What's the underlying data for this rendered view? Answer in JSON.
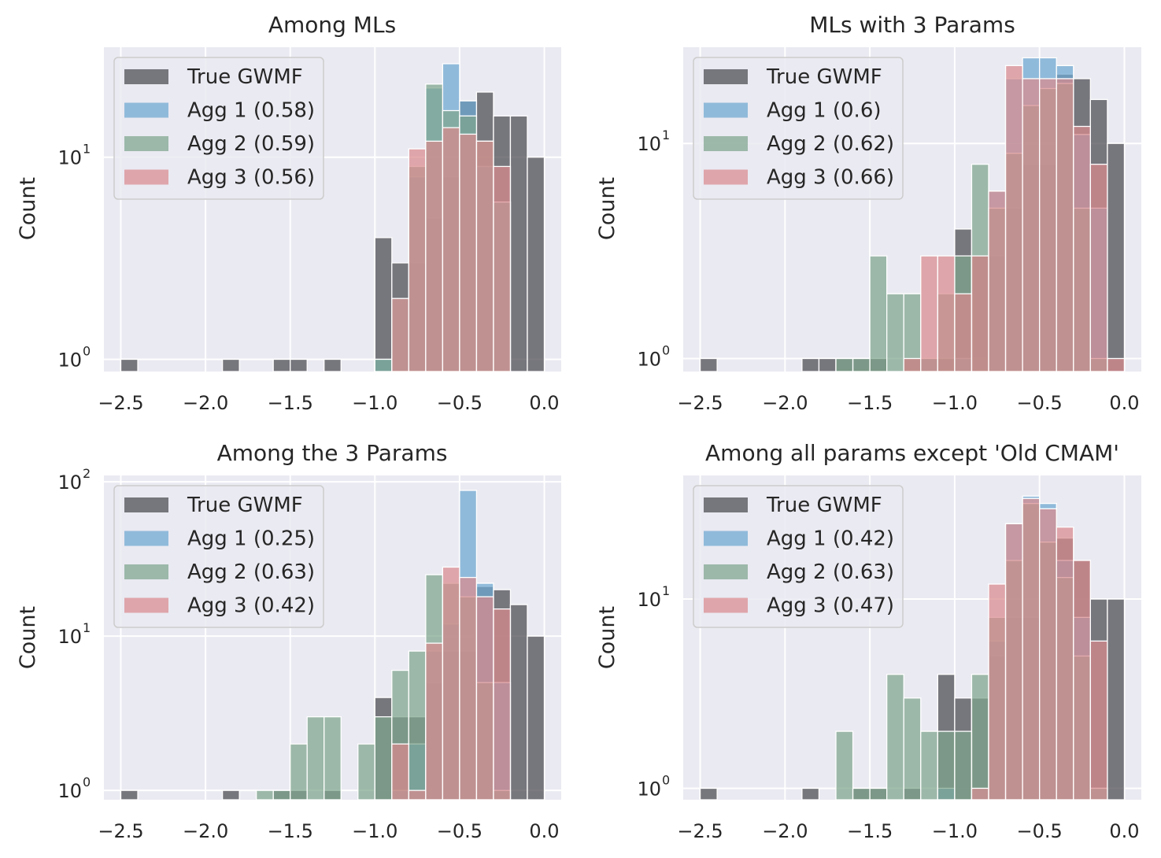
{
  "colors": {
    "axes_bg": "#EAEAF2",
    "grid": "#FFFFFF",
    "true_gwmf": "#4a4a4f",
    "agg1": "#6ea8d0",
    "agg2": "#7ea58c",
    "agg3": "#d98a8d"
  },
  "chart_data": [
    {
      "type": "bar",
      "histogram": true,
      "title": "Among MLs",
      "xlabel": "",
      "ylabel": "Count",
      "yscale": "log",
      "xlim": [
        -2.6,
        0.1
      ],
      "ylim": [
        0.87,
        35
      ],
      "xticks": [
        "−2.5",
        "−2.0",
        "−1.5",
        "−1.0",
        "−0.5",
        "0.0"
      ],
      "yticks": [
        1,
        10
      ],
      "bin_width": 0.1,
      "legend_position": "top-left",
      "series": [
        {
          "name": "True GWMF",
          "color_key": "true_gwmf",
          "bins": [
            [
              -2.45,
              1
            ],
            [
              -1.85,
              1
            ],
            [
              -1.55,
              1
            ],
            [
              -1.45,
              1
            ],
            [
              -1.25,
              1
            ],
            [
              -0.95,
              4
            ],
            [
              -0.85,
              3
            ],
            [
              -0.75,
              3
            ],
            [
              -0.65,
              5
            ],
            [
              -0.55,
              8
            ],
            [
              -0.45,
              19
            ],
            [
              -0.35,
              21
            ],
            [
              -0.25,
              16
            ],
            [
              -0.15,
              16
            ],
            [
              -0.05,
              10
            ]
          ]
        },
        {
          "name": "Agg 1 (0.58)",
          "color_key": "agg1",
          "bins": [
            [
              -0.95,
              1
            ],
            [
              -0.85,
              2
            ],
            [
              -0.75,
              8
            ],
            [
              -0.65,
              22
            ],
            [
              -0.55,
              29
            ],
            [
              -0.45,
              19
            ],
            [
              -0.35,
              9
            ],
            [
              -0.25,
              6
            ]
          ]
        },
        {
          "name": "Agg 2 (0.59)",
          "color_key": "agg2",
          "bins": [
            [
              -0.95,
              1
            ],
            [
              -0.85,
              2
            ],
            [
              -0.75,
              9
            ],
            [
              -0.65,
              23
            ],
            [
              -0.55,
              17
            ],
            [
              -0.45,
              16
            ],
            [
              -0.35,
              12
            ],
            [
              -0.25,
              6
            ]
          ]
        },
        {
          "name": "Agg 3 (0.56)",
          "color_key": "agg3",
          "bins": [
            [
              -0.85,
              2
            ],
            [
              -0.75,
              11
            ],
            [
              -0.65,
              12
            ],
            [
              -0.55,
              14
            ],
            [
              -0.45,
              13
            ],
            [
              -0.35,
              12
            ],
            [
              -0.25,
              9
            ]
          ]
        }
      ]
    },
    {
      "type": "bar",
      "histogram": true,
      "title": "MLs with 3 Params",
      "xlabel": "",
      "ylabel": "Count",
      "yscale": "log",
      "xlim": [
        -2.6,
        0.1
      ],
      "ylim": [
        0.87,
        28
      ],
      "xticks": [
        "−2.5",
        "−2.0",
        "−1.5",
        "−1.0",
        "−0.5",
        "0.0"
      ],
      "yticks": [
        1,
        10
      ],
      "bin_width": 0.1,
      "legend_position": "top-left",
      "series": [
        {
          "name": "True GWMF",
          "color_key": "true_gwmf",
          "bins": [
            [
              -2.45,
              1
            ],
            [
              -1.85,
              1
            ],
            [
              -1.75,
              1
            ],
            [
              -1.65,
              1
            ],
            [
              -1.55,
              1
            ],
            [
              -1.45,
              1
            ],
            [
              -1.25,
              1
            ],
            [
              -1.15,
              1
            ],
            [
              -1.05,
              1
            ],
            [
              -0.95,
              4
            ],
            [
              -0.85,
              3
            ],
            [
              -0.75,
              3
            ],
            [
              -0.65,
              5
            ],
            [
              -0.55,
              8
            ],
            [
              -0.45,
              8
            ],
            [
              -0.35,
              21
            ],
            [
              -0.25,
              20
            ],
            [
              -0.15,
              16
            ],
            [
              -0.05,
              10
            ]
          ]
        },
        {
          "name": "Agg 1 (0.6)",
          "color_key": "agg1",
          "bins": [
            [
              -1.15,
              1
            ],
            [
              -0.95,
              1
            ],
            [
              -0.75,
              6
            ],
            [
              -0.65,
              20
            ],
            [
              -0.55,
              25
            ],
            [
              -0.45,
              25
            ],
            [
              -0.35,
              23
            ],
            [
              -0.25,
              11
            ],
            [
              -0.15,
              5
            ]
          ]
        },
        {
          "name": "Agg 2 (0.62)",
          "color_key": "agg2",
          "bins": [
            [
              -1.65,
              1
            ],
            [
              -1.55,
              1
            ],
            [
              -1.45,
              3
            ],
            [
              -1.35,
              2
            ],
            [
              -1.25,
              2
            ],
            [
              -1.15,
              1
            ],
            [
              -1.05,
              2
            ],
            [
              -0.95,
              3
            ],
            [
              -0.85,
              8
            ],
            [
              -0.75,
              5
            ],
            [
              -0.65,
              9
            ],
            [
              -0.55,
              15
            ],
            [
              -0.45,
              18
            ],
            [
              -0.35,
              19
            ],
            [
              -0.25,
              5
            ],
            [
              -0.15,
              1
            ]
          ]
        },
        {
          "name": "Agg 3 (0.66)",
          "color_key": "agg3",
          "bins": [
            [
              -1.25,
              1
            ],
            [
              -1.15,
              3
            ],
            [
              -1.05,
              3
            ],
            [
              -0.95,
              2
            ],
            [
              -0.85,
              3
            ],
            [
              -0.75,
              6
            ],
            [
              -0.65,
              23
            ],
            [
              -0.55,
              20
            ],
            [
              -0.45,
              20
            ],
            [
              -0.35,
              20
            ],
            [
              -0.25,
              12
            ],
            [
              -0.15,
              8
            ],
            [
              -0.05,
              1
            ]
          ]
        }
      ]
    },
    {
      "type": "bar",
      "histogram": true,
      "title": "Among the 3 Params",
      "xlabel": "",
      "ylabel": "Count",
      "yscale": "log",
      "xlim": [
        -2.6,
        0.1
      ],
      "ylim": [
        0.87,
        110
      ],
      "xticks": [
        "−2.5",
        "−2.0",
        "−1.5",
        "−1.0",
        "−0.5",
        "0.0"
      ],
      "yticks": [
        1,
        10,
        100
      ],
      "bin_width": 0.1,
      "legend_position": "top-left",
      "series": [
        {
          "name": "True GWMF",
          "color_key": "true_gwmf",
          "bins": [
            [
              -2.45,
              1
            ],
            [
              -1.85,
              1
            ],
            [
              -1.55,
              1
            ],
            [
              -1.45,
              1
            ],
            [
              -1.25,
              1
            ],
            [
              -0.95,
              4
            ],
            [
              -0.85,
              3
            ],
            [
              -0.75,
              3
            ],
            [
              -0.65,
              5
            ],
            [
              -0.55,
              8
            ],
            [
              -0.45,
              8
            ],
            [
              -0.35,
              21
            ],
            [
              -0.25,
              20
            ],
            [
              -0.15,
              16
            ],
            [
              -0.05,
              10
            ]
          ]
        },
        {
          "name": "Agg 1 (0.25)",
          "color_key": "agg1",
          "bins": [
            [
              -0.85,
              1
            ],
            [
              -0.75,
              2
            ],
            [
              -0.65,
              8
            ],
            [
              -0.55,
              12
            ],
            [
              -0.45,
              88
            ],
            [
              -0.35,
              22
            ],
            [
              -0.25,
              5
            ]
          ]
        },
        {
          "name": "Agg 2 (0.63)",
          "color_key": "agg2",
          "bins": [
            [
              -1.65,
              1
            ],
            [
              -1.55,
              1
            ],
            [
              -1.45,
              2
            ],
            [
              -1.35,
              3
            ],
            [
              -1.25,
              3
            ],
            [
              -1.05,
              2
            ],
            [
              -0.95,
              3
            ],
            [
              -0.85,
              6
            ],
            [
              -0.75,
              8
            ],
            [
              -0.65,
              25
            ],
            [
              -0.55,
              22
            ],
            [
              -0.45,
              18
            ],
            [
              -0.35,
              5
            ],
            [
              -0.25,
              1
            ]
          ]
        },
        {
          "name": "Agg 3 (0.42)",
          "color_key": "agg3",
          "bins": [
            [
              -0.85,
              2
            ],
            [
              -0.75,
              1
            ],
            [
              -0.65,
              9
            ],
            [
              -0.55,
              28
            ],
            [
              -0.45,
              24
            ],
            [
              -0.35,
              18
            ],
            [
              -0.25,
              15
            ]
          ]
        }
      ]
    },
    {
      "type": "bar",
      "histogram": true,
      "title": "Among all params except 'Old CMAM'",
      "xlabel": "",
      "ylabel": "Count",
      "yscale": "log",
      "xlim": [
        -2.6,
        0.1
      ],
      "ylim": [
        0.87,
        45
      ],
      "xticks": [
        "−2.5",
        "−2.0",
        "−1.5",
        "−1.0",
        "−0.5",
        "0.0"
      ],
      "yticks": [
        1,
        10
      ],
      "bin_width": 0.1,
      "legend_position": "top-left",
      "series": [
        {
          "name": "True GWMF",
          "color_key": "true_gwmf",
          "bins": [
            [
              -2.45,
              1
            ],
            [
              -1.85,
              1
            ],
            [
              -1.55,
              1
            ],
            [
              -1.45,
              1
            ],
            [
              -1.25,
              1
            ],
            [
              -1.05,
              4
            ],
            [
              -0.95,
              3
            ],
            [
              -0.85,
              3
            ],
            [
              -0.75,
              5
            ],
            [
              -0.65,
              8
            ],
            [
              -0.55,
              8
            ],
            [
              -0.45,
              20
            ],
            [
              -0.35,
              21
            ],
            [
              -0.25,
              16
            ],
            [
              -0.15,
              10
            ],
            [
              -0.05,
              10
            ]
          ]
        },
        {
          "name": "Agg 1 (0.42)",
          "color_key": "agg1",
          "bins": [
            [
              -1.05,
              1
            ],
            [
              -0.85,
              1
            ],
            [
              -0.75,
              6
            ],
            [
              -0.65,
              25
            ],
            [
              -0.55,
              35
            ],
            [
              -0.45,
              32
            ],
            [
              -0.35,
              16
            ],
            [
              -0.25,
              8
            ],
            [
              -0.15,
              1
            ]
          ]
        },
        {
          "name": "Agg 2 (0.63)",
          "color_key": "agg2",
          "bins": [
            [
              -1.65,
              2
            ],
            [
              -1.55,
              1
            ],
            [
              -1.45,
              1
            ],
            [
              -1.35,
              4
            ],
            [
              -1.25,
              3
            ],
            [
              -1.15,
              2
            ],
            [
              -1.05,
              2
            ],
            [
              -0.95,
              2
            ],
            [
              -0.85,
              4
            ],
            [
              -0.75,
              8
            ],
            [
              -0.65,
              16
            ],
            [
              -0.55,
              32
            ],
            [
              -0.45,
              20
            ],
            [
              -0.35,
              13
            ],
            [
              -0.25,
              5
            ],
            [
              -0.15,
              1
            ]
          ]
        },
        {
          "name": "Agg 3 (0.47)",
          "color_key": "agg3",
          "bins": [
            [
              -0.85,
              1
            ],
            [
              -0.75,
              12
            ],
            [
              -0.65,
              25
            ],
            [
              -0.55,
              34
            ],
            [
              -0.45,
              30
            ],
            [
              -0.35,
              24
            ],
            [
              -0.25,
              16
            ],
            [
              -0.15,
              6
            ]
          ]
        }
      ]
    }
  ]
}
